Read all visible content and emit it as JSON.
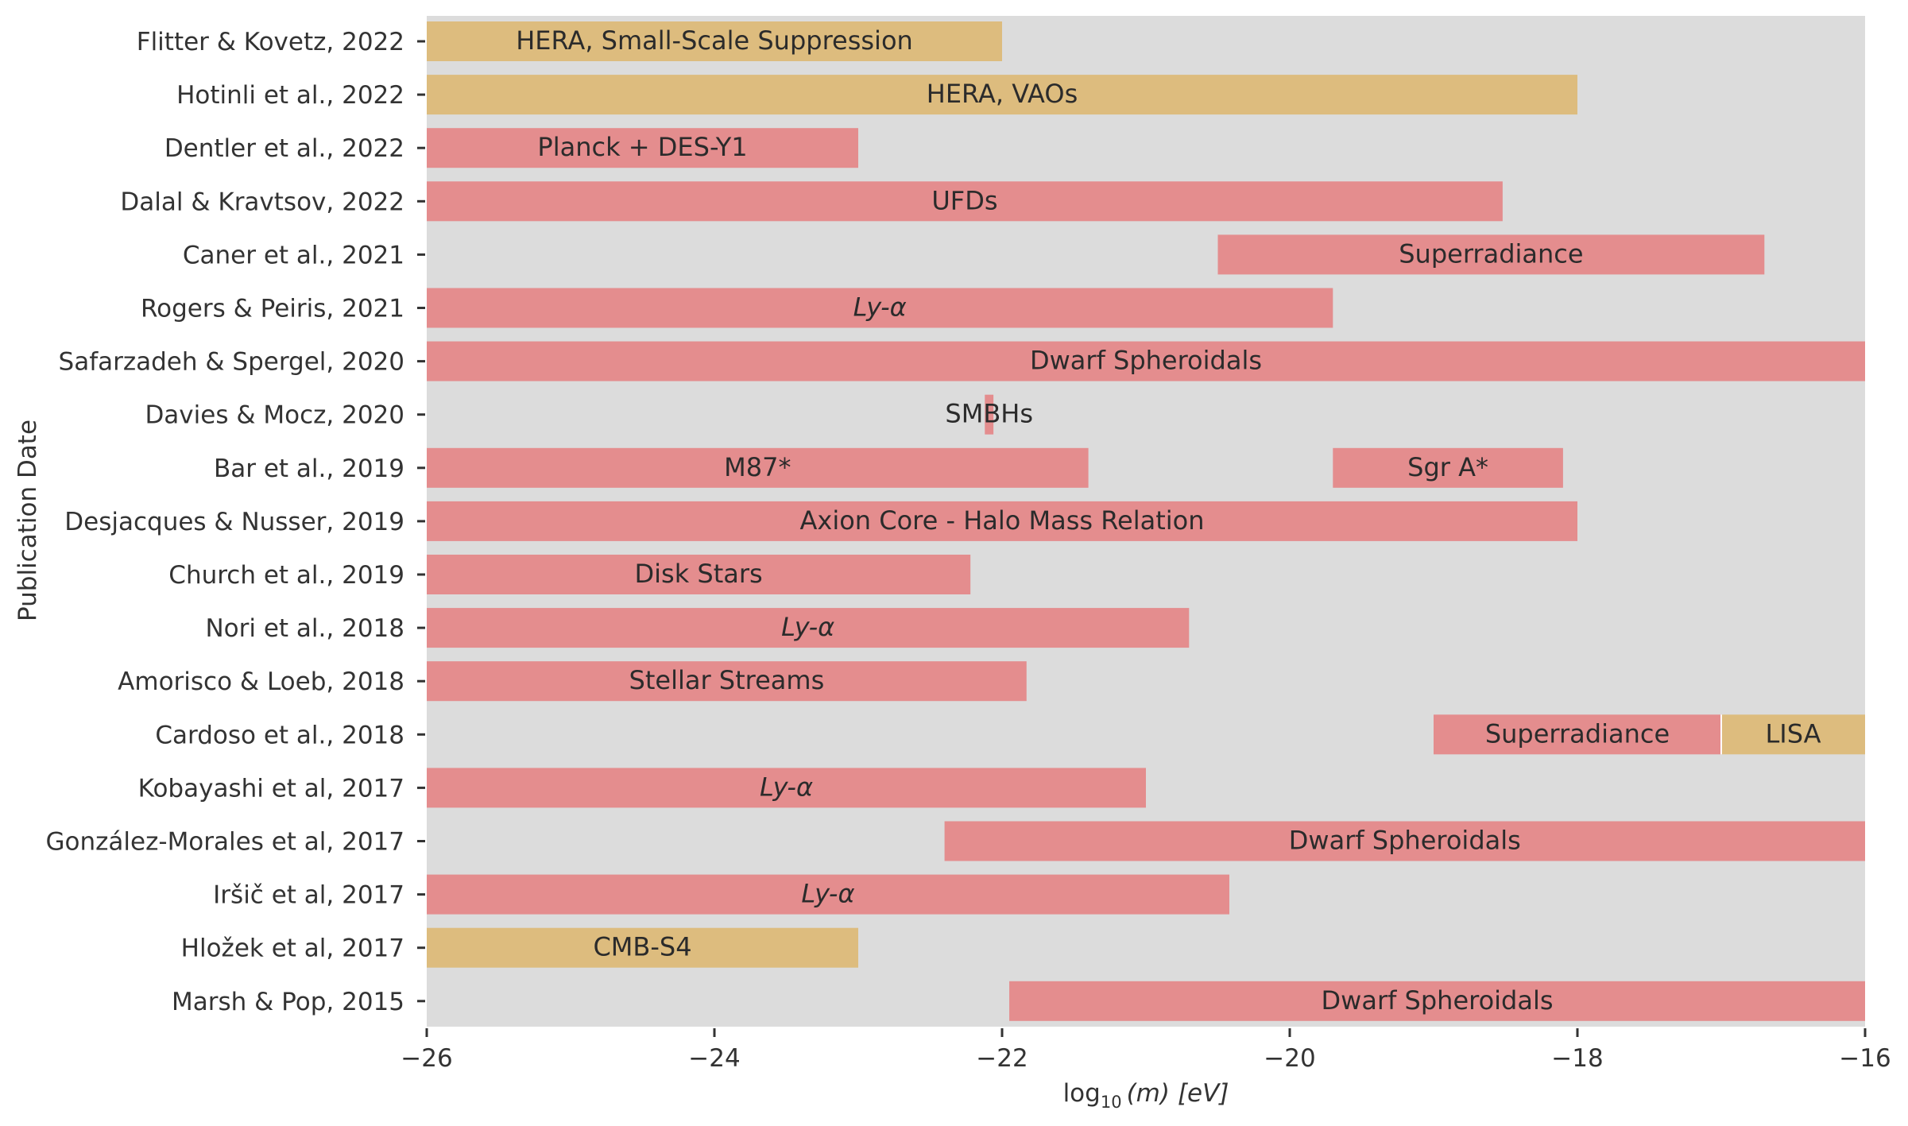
{
  "colors": {
    "background": "#dcdcdc",
    "constraint": "#e48d8e",
    "forecast": "#ddbc7e",
    "text": "#333333"
  },
  "chart_data": {
    "type": "bar",
    "orientation": "horizontal",
    "xlabel": {
      "prefix": "log",
      "sub": "10",
      "arg": "(m)",
      "unit": "[eV]"
    },
    "ylabel": "Publication Date",
    "xlim": [
      -26,
      -16
    ],
    "xticks": [
      -26,
      -24,
      -22,
      -20,
      -18,
      -16
    ],
    "xtick_labels": [
      "−26",
      "−24",
      "−22",
      "−20",
      "−18",
      "−16"
    ],
    "grid": false,
    "rows": [
      "Flitter & Kovetz, 2022",
      "Hotinli et al., 2022",
      "Dentler et al., 2022",
      "Dalal & Kravtsov, 2022",
      "Caner et al., 2021",
      "Rogers & Peiris, 2021",
      "Safarzadeh & Spergel, 2020",
      "Davies & Mocz, 2020",
      "Bar et al., 2019",
      "Desjacques & Nusser, 2019",
      "Church et al., 2019",
      "Nori et al., 2018",
      "Amorisco & Loeb, 2018",
      "Cardoso et al., 2018",
      "Kobayashi et al, 2017",
      "González-Morales et al, 2017",
      "Iršič et al, 2017",
      "Hložek et al, 2017",
      "Marsh & Pop, 2015"
    ],
    "bars": [
      {
        "row": 0,
        "start": -26.0,
        "end": -22.0,
        "label": "HERA, Small-Scale Suppression",
        "kind": "forecast",
        "italic": false
      },
      {
        "row": 1,
        "start": -26.0,
        "end": -18.0,
        "label": "HERA, VAOs",
        "kind": "forecast",
        "italic": false
      },
      {
        "row": 2,
        "start": -26.0,
        "end": -23.0,
        "label": "Planck + DES-Y1",
        "kind": "constraint",
        "italic": false
      },
      {
        "row": 3,
        "start": -26.0,
        "end": -18.52,
        "label": "UFDs",
        "kind": "constraint",
        "italic": false
      },
      {
        "row": 4,
        "start": -20.5,
        "end": -16.7,
        "label": "Superradiance",
        "kind": "constraint",
        "italic": false
      },
      {
        "row": 5,
        "start": -26.0,
        "end": -19.7,
        "label": "Ly-α",
        "kind": "constraint",
        "italic": true
      },
      {
        "row": 6,
        "start": -26.0,
        "end": -16.0,
        "label": "Dwarf Spheroidals",
        "kind": "constraint",
        "italic": false
      },
      {
        "row": 7,
        "start": -22.12,
        "end": -22.06,
        "label": "SMBHs",
        "kind": "constraint",
        "italic": false
      },
      {
        "row": 8,
        "start": -26.0,
        "end": -21.4,
        "label": "M87*",
        "kind": "constraint",
        "italic": false
      },
      {
        "row": 8,
        "start": -19.7,
        "end": -18.1,
        "label": "Sgr A*",
        "kind": "constraint",
        "italic": false
      },
      {
        "row": 9,
        "start": -26.0,
        "end": -18.0,
        "label": "Axion Core - Halo Mass Relation",
        "kind": "constraint",
        "italic": false
      },
      {
        "row": 10,
        "start": -26.0,
        "end": -22.22,
        "label": "Disk Stars",
        "kind": "constraint",
        "italic": false
      },
      {
        "row": 11,
        "start": -26.0,
        "end": -20.7,
        "label": "Ly-α",
        "kind": "constraint",
        "italic": true
      },
      {
        "row": 12,
        "start": -26.0,
        "end": -21.83,
        "label": "Stellar Streams",
        "kind": "constraint",
        "italic": false
      },
      {
        "row": 13,
        "start": -19.0,
        "end": -17.0,
        "label": "Superradiance",
        "kind": "constraint",
        "italic": false
      },
      {
        "row": 13,
        "start": -17.0,
        "end": -16.0,
        "label": "LISA",
        "kind": "forecast",
        "italic": false
      },
      {
        "row": 14,
        "start": -26.0,
        "end": -21.0,
        "label": "Ly-α",
        "kind": "constraint",
        "italic": true
      },
      {
        "row": 15,
        "start": -22.4,
        "end": -16.0,
        "label": "Dwarf Spheroidals",
        "kind": "constraint",
        "italic": false
      },
      {
        "row": 16,
        "start": -26.0,
        "end": -20.42,
        "label": "Ly-α",
        "kind": "constraint",
        "italic": true
      },
      {
        "row": 17,
        "start": -26.0,
        "end": -23.0,
        "label": "CMB-S4",
        "kind": "forecast",
        "italic": false
      },
      {
        "row": 18,
        "start": -21.95,
        "end": -16.0,
        "label": "Dwarf Spheroidals",
        "kind": "constraint",
        "italic": false
      }
    ]
  }
}
